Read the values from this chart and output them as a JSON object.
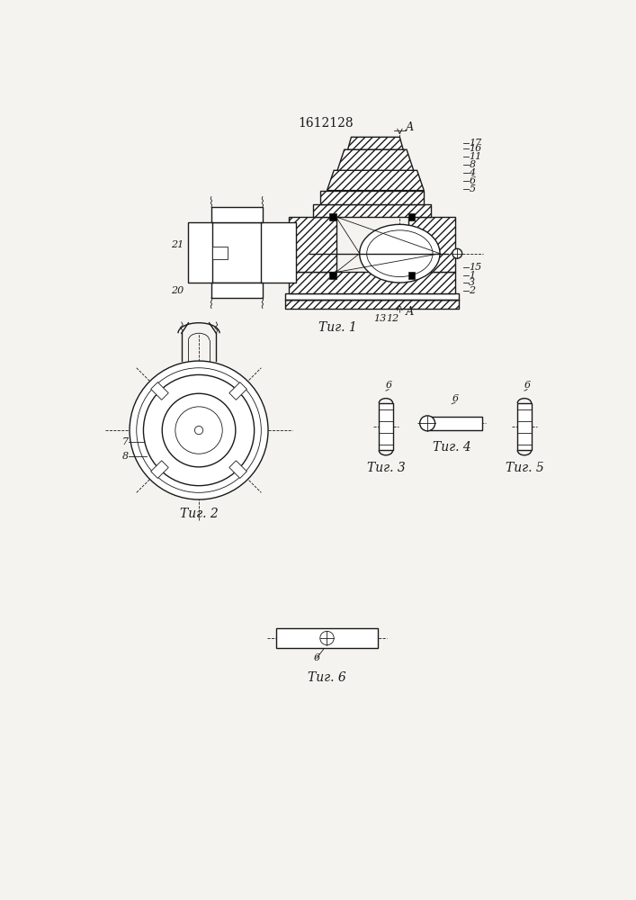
{
  "title": "1612128",
  "bg": "#f5f3ef",
  "lc": "#1a1a1a",
  "fig1_label": "Τиг. 1",
  "fig2_label": "Τиг. 2",
  "fig3_label": "Τиг. 3",
  "fig4_label": "Τиг. 4",
  "fig5_label": "Τиг. 5",
  "fig6_label": "Τиг. 6"
}
